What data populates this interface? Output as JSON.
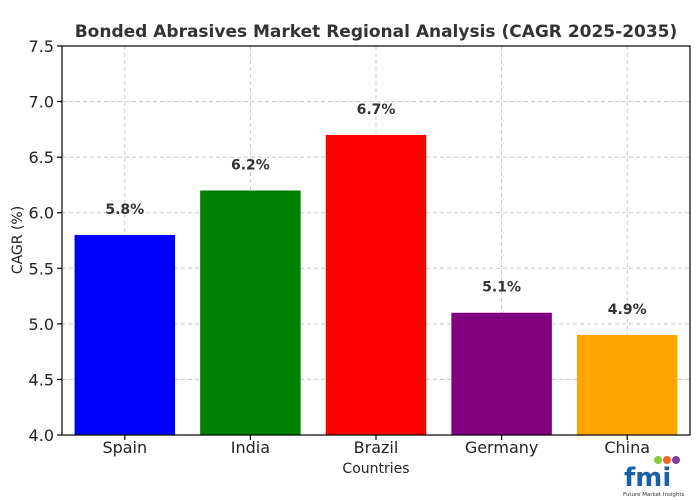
{
  "chart_data": {
    "type": "bar",
    "title": "Bonded Abrasives Market Regional Analysis (CAGR 2025-2035)",
    "xlabel": "Countries",
    "ylabel": "CAGR (%)",
    "ylim": [
      4.0,
      7.5
    ],
    "yticks": [
      "4.0",
      "4.5",
      "5.0",
      "5.5",
      "6.0",
      "6.5",
      "7.0",
      "7.5"
    ],
    "grid": true,
    "categories": [
      "Spain",
      "India",
      "Brazil",
      "Germany",
      "China"
    ],
    "values": [
      5.8,
      6.2,
      6.7,
      5.1,
      4.9
    ],
    "data_labels": [
      "5.8%",
      "6.2%",
      "6.7%",
      "5.1%",
      "4.9%"
    ],
    "colors": [
      "#0000ff",
      "#008000",
      "#ff0000",
      "#800080",
      "#ffa500"
    ]
  },
  "logo": {
    "text": "fmi",
    "subtitle": "Future Market Insights"
  }
}
